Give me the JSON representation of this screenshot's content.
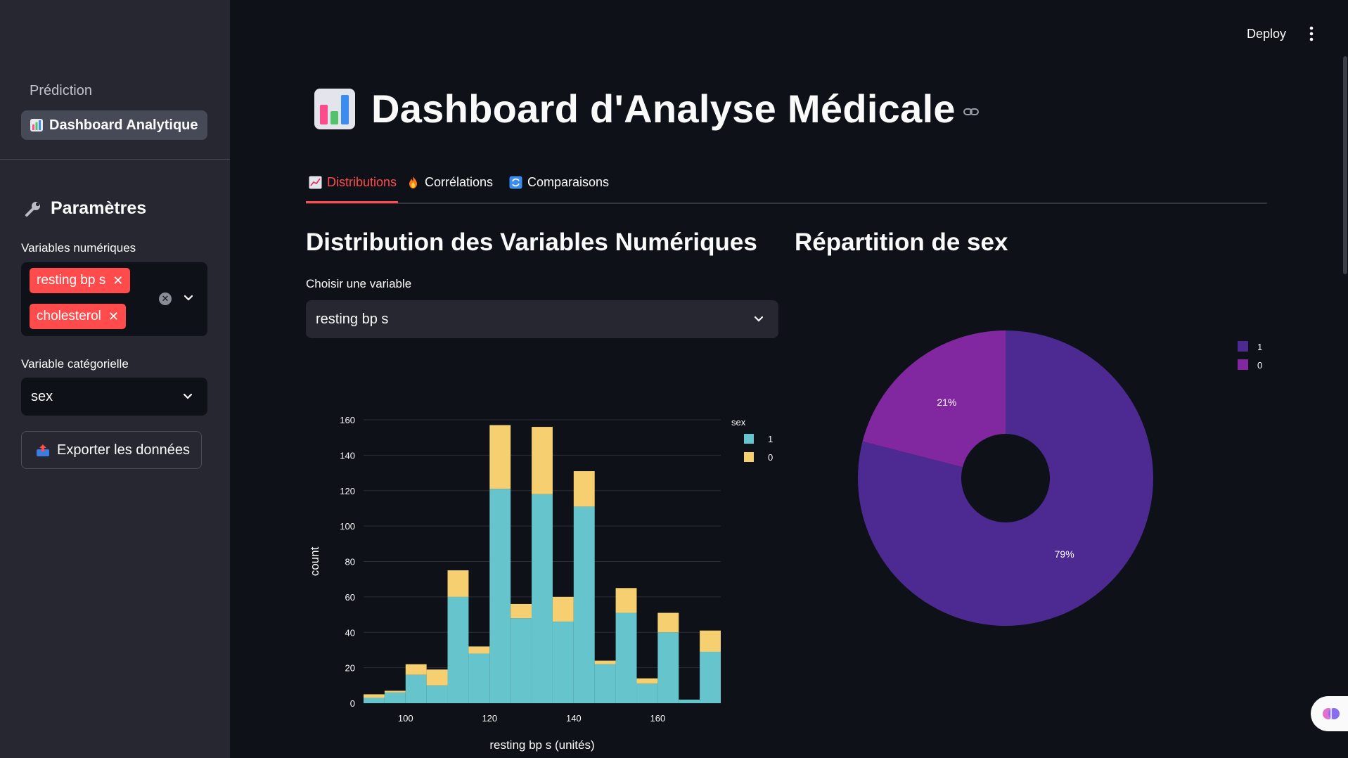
{
  "header": {
    "deploy_label": "Deploy"
  },
  "sidebar": {
    "nav": [
      {
        "label": "Prédiction"
      },
      {
        "label": "Dashboard Analytique"
      }
    ],
    "params_title": "Paramètres",
    "numeric_label": "Variables numériques",
    "numeric_selected": [
      "resting bp s",
      "cholesterol"
    ],
    "categorical_label": "Variable catégorielle",
    "categorical_value": "sex",
    "export_label": "Exporter les données"
  },
  "page": {
    "title": "Dashboard d'Analyse Médicale"
  },
  "tabs": [
    {
      "label": "Distributions"
    },
    {
      "label": "Corrélations"
    },
    {
      "label": "Comparaisons"
    }
  ],
  "left": {
    "heading": "Distribution des Variables Numériques",
    "select_label": "Choisir une variable",
    "select_value": "resting bp s"
  },
  "right": {
    "heading": "Répartition de sex"
  },
  "chart_data": [
    {
      "type": "bar",
      "stacked": true,
      "xlabel": "resting bp s (unités)",
      "ylabel": "count",
      "legend_title": "sex",
      "legend_position": "right",
      "x_ticks": [
        100,
        120,
        140,
        160
      ],
      "y_ticks": [
        0,
        20,
        40,
        60,
        80,
        100,
        120,
        140,
        160
      ],
      "xlim": [
        90,
        175
      ],
      "ylim": [
        0,
        160
      ],
      "bin_width": 5,
      "bin_starts": [
        90,
        95,
        100,
        105,
        110,
        115,
        120,
        125,
        130,
        135,
        140,
        145,
        150,
        155,
        160,
        165,
        170
      ],
      "series": [
        {
          "name": "1",
          "color": "#66c5cc",
          "values": [
            3,
            6,
            16,
            10,
            60,
            28,
            121,
            48,
            118,
            46,
            111,
            22,
            51,
            11,
            40,
            2,
            29
          ]
        },
        {
          "name": "0",
          "color": "#f6cf71",
          "values": [
            2,
            1,
            6,
            9,
            15,
            4,
            36,
            8,
            38,
            14,
            20,
            2,
            14,
            3,
            11,
            0,
            12
          ]
        }
      ]
    },
    {
      "type": "pie",
      "donut": true,
      "legend_position": "top-right",
      "labels": [
        "1",
        "0"
      ],
      "values": [
        79,
        21
      ],
      "value_labels": [
        "79%",
        "21%"
      ],
      "colors": [
        "#4c2a91",
        "#8128a1"
      ]
    }
  ]
}
